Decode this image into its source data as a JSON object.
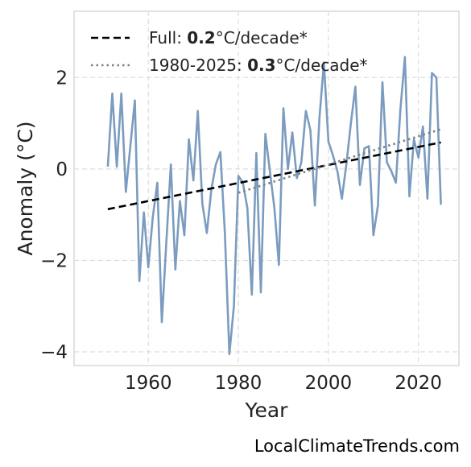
{
  "chart_data": {
    "type": "line",
    "xlabel": "Year",
    "ylabel": "Anomaly (°C)",
    "xlim": [
      1943.5,
      2029
    ],
    "ylim": [
      -4.3,
      3.45
    ],
    "xticks": [
      1960,
      1980,
      2000,
      2020
    ],
    "yticks": [
      -4,
      -2,
      0,
      2
    ],
    "grid": true,
    "legend_position": "top-left",
    "series": [
      {
        "style": "solid",
        "color": "#7b9cbf",
        "x": [
          1951,
          1952,
          1953,
          1954,
          1955,
          1956,
          1957,
          1958,
          1959,
          1960,
          1961,
          1962,
          1963,
          1964,
          1965,
          1966,
          1967,
          1968,
          1969,
          1970,
          1971,
          1972,
          1973,
          1974,
          1975,
          1976,
          1977,
          1978,
          1979,
          1980,
          1981,
          1982,
          1983,
          1984,
          1985,
          1986,
          1987,
          1988,
          1989,
          1990,
          1991,
          1992,
          1993,
          1994,
          1995,
          1996,
          1997,
          1998,
          1999,
          2000,
          2001,
          2002,
          2003,
          2004,
          2005,
          2006,
          2007,
          2008,
          2009,
          2010,
          2011,
          2012,
          2013,
          2014,
          2015,
          2016,
          2017,
          2018,
          2019,
          2020,
          2021,
          2022,
          2023,
          2024,
          2025
        ],
        "y": [
          0.05,
          1.65,
          0.05,
          1.65,
          -0.5,
          0.5,
          1.5,
          -2.45,
          -0.95,
          -2.15,
          -1.05,
          -0.3,
          -3.35,
          -1.6,
          0.1,
          -2.2,
          -0.7,
          -1.45,
          0.65,
          -0.25,
          1.27,
          -0.75,
          -1.4,
          -0.45,
          0.1,
          0.37,
          -1.4,
          -4.05,
          -3.0,
          -0.15,
          -0.3,
          -0.85,
          -2.75,
          0.35,
          -2.7,
          0.77,
          -0.05,
          -0.85,
          -2.1,
          1.33,
          0.0,
          0.8,
          -0.2,
          0.15,
          1.27,
          0.85,
          -0.8,
          1.1,
          2.33,
          0.6,
          0.3,
          -0.05,
          -0.65,
          0.1,
          1.0,
          1.8,
          -0.35,
          0.45,
          0.5,
          -1.45,
          -0.8,
          1.9,
          0.15,
          -0.05,
          -0.3,
          1.3,
          2.45,
          -0.6,
          0.65,
          0.25,
          0.93,
          -0.65,
          2.1,
          2.0,
          -0.78
        ]
      },
      {
        "name": "Full: 0.2°C/decade*",
        "style": "dashed",
        "color": "#000000",
        "x": [
          1951,
          2025
        ],
        "y": [
          -0.88,
          0.58
        ]
      },
      {
        "name": "1980-2025: 0.3°C/decade*",
        "style": "dotted",
        "color": "#808080",
        "x": [
          1980,
          2025
        ],
        "y": [
          -0.52,
          0.87
        ]
      }
    ]
  },
  "legend": {
    "full": {
      "prefix": "Full: ",
      "value": "0.2",
      "suffix": "°C/decade*"
    },
    "recent": {
      "prefix": "1980-2025: ",
      "value": "0.3",
      "suffix": "°C/decade*"
    }
  },
  "credit": "LocalClimateTrends.com"
}
